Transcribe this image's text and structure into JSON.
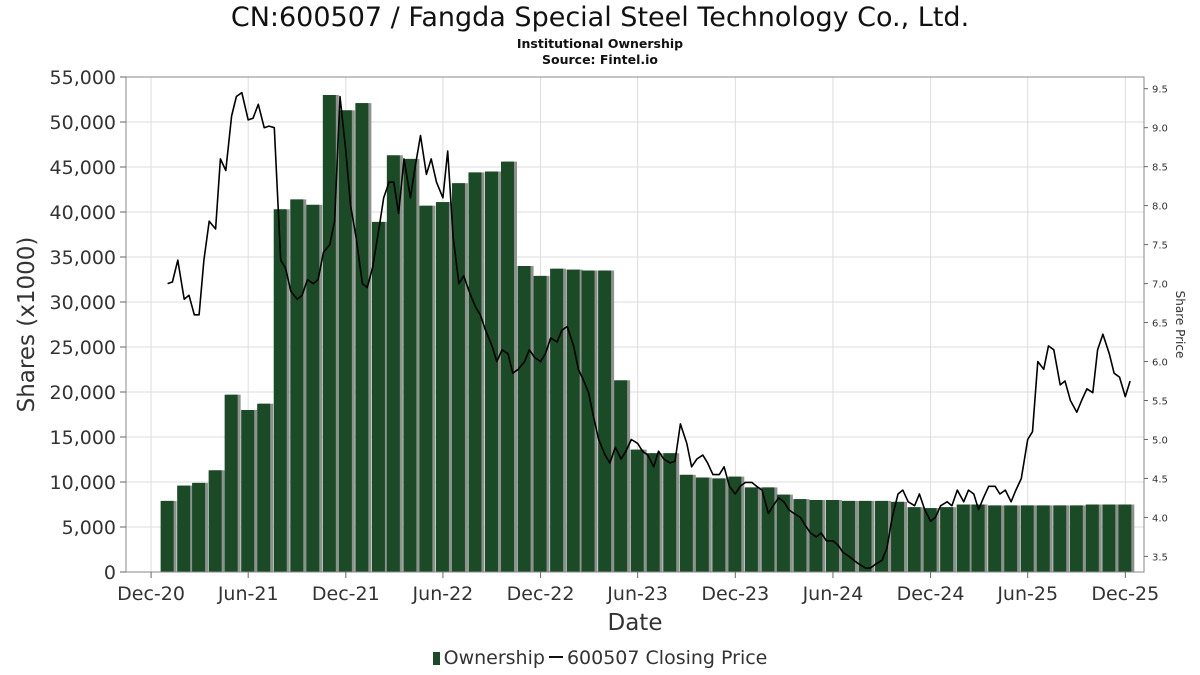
{
  "header": {
    "title": "CN:600507 / Fangda Special Steel Technology Co., Ltd.",
    "subtitle": "Institutional Ownership",
    "source": "Source: Fintel.io"
  },
  "legend": {
    "ownership_label": "Ownership",
    "price_label": "600507 Closing Price"
  },
  "colors": {
    "bar": "#1b4a26",
    "bar_shadow": "#8f918f",
    "price_line": "#000000",
    "grid": "#dddddd"
  },
  "chart_data": {
    "type": "bar",
    "xlabel": "Date",
    "ylabel": "Shares (x1000)",
    "y2label": "Share Price",
    "ylim": [
      0,
      55000
    ],
    "y2lim": [
      3.3,
      9.65
    ],
    "y_ticks": [
      0,
      5000,
      10000,
      15000,
      20000,
      25000,
      30000,
      35000,
      40000,
      45000,
      50000,
      55000
    ],
    "y_tick_labels": [
      "0",
      "5,000",
      "10,000",
      "15,000",
      "20,000",
      "25,000",
      "30,000",
      "35,000",
      "40,000",
      "45,000",
      "50,000",
      "55,000"
    ],
    "y2_ticks": [
      3.5,
      4.0,
      4.5,
      5.0,
      5.5,
      6.0,
      6.5,
      7.0,
      7.5,
      8.0,
      8.5,
      9.0,
      9.5
    ],
    "y2_tick_labels": [
      "3.5",
      "4.0",
      "4.5",
      "5.0",
      "5.5",
      "6.0",
      "6.5",
      "7.0",
      "7.5",
      "8.0",
      "8.5",
      "9.0",
      "9.5"
    ],
    "x_tick_labels": [
      "Dec-20",
      "Jun-21",
      "Dec-21",
      "Jun-22",
      "Dec-22",
      "Jun-23",
      "Dec-23",
      "Jun-24",
      "Dec-24",
      "Jun-25",
      "Dec-25"
    ],
    "x_tick_dates": [
      "2020-12-01",
      "2021-06-01",
      "2021-12-01",
      "2022-06-01",
      "2022-12-01",
      "2023-06-01",
      "2023-12-01",
      "2024-06-01",
      "2024-12-01",
      "2025-06-01",
      "2025-12-01"
    ],
    "xlim": [
      "2020-10-15",
      "2026-01-05"
    ],
    "grid": true,
    "legend_position": "bottom",
    "series": [
      {
        "name": "Ownership",
        "type": "bar",
        "axis": "left",
        "dates": [
          "2021-01-01",
          "2021-02-01",
          "2021-03-01",
          "2021-04-01",
          "2021-05-01",
          "2021-06-01",
          "2021-07-01",
          "2021-08-01",
          "2021-09-01",
          "2021-10-01",
          "2021-11-01",
          "2021-12-01",
          "2022-01-01",
          "2022-02-01",
          "2022-03-01",
          "2022-04-01",
          "2022-05-01",
          "2022-06-01",
          "2022-07-01",
          "2022-08-01",
          "2022-09-01",
          "2022-10-01",
          "2022-11-01",
          "2022-12-01",
          "2023-01-01",
          "2023-02-01",
          "2023-03-01",
          "2023-04-01",
          "2023-05-01",
          "2023-06-01",
          "2023-07-01",
          "2023-08-01",
          "2023-09-01",
          "2023-10-01",
          "2023-11-01",
          "2023-12-01",
          "2024-01-01",
          "2024-02-01",
          "2024-03-01",
          "2024-04-01",
          "2024-05-01",
          "2024-06-01",
          "2024-07-01",
          "2024-08-01",
          "2024-09-01",
          "2024-10-01",
          "2024-11-01",
          "2024-12-01",
          "2025-01-01",
          "2025-02-01",
          "2025-03-01",
          "2025-04-01",
          "2025-05-01",
          "2025-06-01",
          "2025-07-01",
          "2025-08-01",
          "2025-09-01",
          "2025-10-01",
          "2025-11-01",
          "2025-12-01"
        ],
        "values": [
          7900,
          9600,
          9900,
          11300,
          19700,
          18000,
          18700,
          40300,
          41400,
          40800,
          53000,
          51300,
          52100,
          38900,
          46300,
          45900,
          40700,
          41100,
          43200,
          44400,
          44500,
          45600,
          34000,
          32900,
          33700,
          33600,
          33500,
          33500,
          21300,
          13600,
          13200,
          13200,
          10800,
          10500,
          10400,
          10600,
          9400,
          9400,
          8600,
          8100,
          8000,
          8000,
          7900,
          7900,
          7900,
          7800,
          7200,
          7100,
          7200,
          7500,
          7500,
          7400,
          7400,
          7400,
          7400,
          7400,
          7400,
          7500,
          7500,
          7500
        ]
      },
      {
        "name": "600507 Closing Price",
        "type": "line",
        "axis": "right",
        "points": [
          [
            "2021-01-01",
            7.0
          ],
          [
            "2021-01-10",
            7.02
          ],
          [
            "2021-01-20",
            7.3
          ],
          [
            "2021-02-01",
            6.8
          ],
          [
            "2021-02-10",
            6.85
          ],
          [
            "2021-02-20",
            6.6
          ],
          [
            "2021-03-01",
            6.6
          ],
          [
            "2021-03-10",
            7.3
          ],
          [
            "2021-03-20",
            7.8
          ],
          [
            "2021-04-01",
            7.7
          ],
          [
            "2021-04-10",
            8.6
          ],
          [
            "2021-04-20",
            8.45
          ],
          [
            "2021-05-01",
            9.15
          ],
          [
            "2021-05-10",
            9.4
          ],
          [
            "2021-05-20",
            9.45
          ],
          [
            "2021-06-01",
            9.1
          ],
          [
            "2021-06-10",
            9.12
          ],
          [
            "2021-06-20",
            9.3
          ],
          [
            "2021-07-01",
            9.0
          ],
          [
            "2021-07-10",
            9.02
          ],
          [
            "2021-07-20",
            9.0
          ],
          [
            "2021-08-01",
            7.3
          ],
          [
            "2021-08-10",
            7.2
          ],
          [
            "2021-08-20",
            6.9
          ],
          [
            "2021-09-01",
            6.8
          ],
          [
            "2021-09-10",
            6.85
          ],
          [
            "2021-09-20",
            7.05
          ],
          [
            "2021-10-01",
            7.0
          ],
          [
            "2021-10-10",
            7.05
          ],
          [
            "2021-10-20",
            7.4
          ],
          [
            "2021-11-01",
            7.5
          ],
          [
            "2021-11-10",
            7.8
          ],
          [
            "2021-11-20",
            9.4
          ],
          [
            "2021-12-01",
            8.7
          ],
          [
            "2021-12-10",
            8.0
          ],
          [
            "2021-12-20",
            7.6
          ],
          [
            "2022-01-01",
            7.0
          ],
          [
            "2022-01-10",
            6.95
          ],
          [
            "2022-01-20",
            7.2
          ],
          [
            "2022-02-01",
            7.7
          ],
          [
            "2022-02-10",
            8.1
          ],
          [
            "2022-02-20",
            8.3
          ],
          [
            "2022-03-01",
            8.3
          ],
          [
            "2022-03-10",
            7.9
          ],
          [
            "2022-03-20",
            8.6
          ],
          [
            "2022-04-01",
            8.1
          ],
          [
            "2022-04-10",
            8.5
          ],
          [
            "2022-04-20",
            8.9
          ],
          [
            "2022-05-01",
            8.4
          ],
          [
            "2022-05-10",
            8.6
          ],
          [
            "2022-05-20",
            8.3
          ],
          [
            "2022-06-01",
            8.1
          ],
          [
            "2022-06-10",
            8.7
          ],
          [
            "2022-06-20",
            7.6
          ],
          [
            "2022-07-01",
            7.0
          ],
          [
            "2022-07-10",
            7.1
          ],
          [
            "2022-07-20",
            6.9
          ],
          [
            "2022-08-01",
            6.7
          ],
          [
            "2022-08-10",
            6.6
          ],
          [
            "2022-08-20",
            6.4
          ],
          [
            "2022-09-01",
            6.2
          ],
          [
            "2022-09-10",
            6.0
          ],
          [
            "2022-09-20",
            6.15
          ],
          [
            "2022-10-01",
            6.1
          ],
          [
            "2022-10-10",
            5.85
          ],
          [
            "2022-10-20",
            5.9
          ],
          [
            "2022-11-01",
            6.0
          ],
          [
            "2022-11-10",
            6.15
          ],
          [
            "2022-11-20",
            6.05
          ],
          [
            "2022-12-01",
            6.0
          ],
          [
            "2022-12-10",
            6.1
          ],
          [
            "2022-12-20",
            6.3
          ],
          [
            "2023-01-01",
            6.25
          ],
          [
            "2023-01-10",
            6.4
          ],
          [
            "2023-01-20",
            6.45
          ],
          [
            "2023-02-01",
            6.2
          ],
          [
            "2023-02-10",
            5.9
          ],
          [
            "2023-02-20",
            5.75
          ],
          [
            "2023-03-01",
            5.6
          ],
          [
            "2023-03-10",
            5.3
          ],
          [
            "2023-03-20",
            5.0
          ],
          [
            "2023-04-01",
            4.8
          ],
          [
            "2023-04-10",
            4.7
          ],
          [
            "2023-04-20",
            4.9
          ],
          [
            "2023-05-01",
            4.75
          ],
          [
            "2023-05-10",
            4.85
          ],
          [
            "2023-05-20",
            5.0
          ],
          [
            "2023-06-01",
            4.95
          ],
          [
            "2023-06-10",
            4.85
          ],
          [
            "2023-06-20",
            4.8
          ],
          [
            "2023-07-01",
            4.65
          ],
          [
            "2023-07-10",
            4.85
          ],
          [
            "2023-07-20",
            4.75
          ],
          [
            "2023-08-01",
            4.7
          ],
          [
            "2023-08-10",
            4.72
          ],
          [
            "2023-08-20",
            5.2
          ],
          [
            "2023-09-01",
            4.95
          ],
          [
            "2023-09-10",
            4.65
          ],
          [
            "2023-09-20",
            4.75
          ],
          [
            "2023-10-01",
            4.8
          ],
          [
            "2023-10-10",
            4.7
          ],
          [
            "2023-10-20",
            4.55
          ],
          [
            "2023-11-01",
            4.55
          ],
          [
            "2023-11-10",
            4.65
          ],
          [
            "2023-11-20",
            4.4
          ],
          [
            "2023-12-01",
            4.3
          ],
          [
            "2023-12-10",
            4.4
          ],
          [
            "2023-12-20",
            4.45
          ],
          [
            "2024-01-01",
            4.45
          ],
          [
            "2024-01-10",
            4.4
          ],
          [
            "2024-01-20",
            4.35
          ],
          [
            "2024-02-01",
            4.05
          ],
          [
            "2024-02-10",
            4.15
          ],
          [
            "2024-02-20",
            4.25
          ],
          [
            "2024-03-01",
            4.2
          ],
          [
            "2024-03-10",
            4.1
          ],
          [
            "2024-03-20",
            4.05
          ],
          [
            "2024-04-01",
            4.0
          ],
          [
            "2024-04-10",
            3.9
          ],
          [
            "2024-04-20",
            3.8
          ],
          [
            "2024-05-01",
            3.75
          ],
          [
            "2024-05-10",
            3.8
          ],
          [
            "2024-05-20",
            3.7
          ],
          [
            "2024-06-01",
            3.7
          ],
          [
            "2024-06-10",
            3.65
          ],
          [
            "2024-06-20",
            3.55
          ],
          [
            "2024-07-01",
            3.5
          ],
          [
            "2024-07-10",
            3.45
          ],
          [
            "2024-07-20",
            3.4
          ],
          [
            "2024-08-01",
            3.35
          ],
          [
            "2024-08-10",
            3.35
          ],
          [
            "2024-08-20",
            3.4
          ],
          [
            "2024-09-01",
            3.45
          ],
          [
            "2024-09-10",
            3.6
          ],
          [
            "2024-09-20",
            4.0
          ],
          [
            "2024-10-01",
            4.3
          ],
          [
            "2024-10-10",
            4.35
          ],
          [
            "2024-10-20",
            4.2
          ],
          [
            "2024-11-01",
            4.15
          ],
          [
            "2024-11-10",
            4.3
          ],
          [
            "2024-11-20",
            4.1
          ],
          [
            "2024-12-01",
            3.95
          ],
          [
            "2024-12-10",
            4.0
          ],
          [
            "2024-12-20",
            4.15
          ],
          [
            "2025-01-01",
            4.2
          ],
          [
            "2025-01-10",
            4.15
          ],
          [
            "2025-01-20",
            4.35
          ],
          [
            "2025-02-01",
            4.2
          ],
          [
            "2025-02-10",
            4.35
          ],
          [
            "2025-02-20",
            4.3
          ],
          [
            "2025-03-01",
            4.1
          ],
          [
            "2025-03-10",
            4.25
          ],
          [
            "2025-03-20",
            4.4
          ],
          [
            "2025-04-01",
            4.4
          ],
          [
            "2025-04-10",
            4.3
          ],
          [
            "2025-04-20",
            4.35
          ],
          [
            "2025-05-01",
            4.2
          ],
          [
            "2025-05-10",
            4.35
          ],
          [
            "2025-05-20",
            4.5
          ],
          [
            "2025-06-01",
            5.0
          ],
          [
            "2025-06-10",
            5.1
          ],
          [
            "2025-06-20",
            6.0
          ],
          [
            "2025-07-01",
            5.9
          ],
          [
            "2025-07-10",
            6.2
          ],
          [
            "2025-07-20",
            6.15
          ],
          [
            "2025-08-01",
            5.7
          ],
          [
            "2025-08-10",
            5.75
          ],
          [
            "2025-08-20",
            5.5
          ],
          [
            "2025-09-01",
            5.35
          ],
          [
            "2025-09-10",
            5.5
          ],
          [
            "2025-09-20",
            5.65
          ],
          [
            "2025-10-01",
            5.6
          ],
          [
            "2025-10-10",
            6.15
          ],
          [
            "2025-10-20",
            6.35
          ],
          [
            "2025-11-01",
            6.1
          ],
          [
            "2025-11-10",
            5.85
          ],
          [
            "2025-11-20",
            5.8
          ],
          [
            "2025-12-01",
            5.55
          ],
          [
            "2025-12-10",
            5.75
          ]
        ]
      }
    ]
  }
}
